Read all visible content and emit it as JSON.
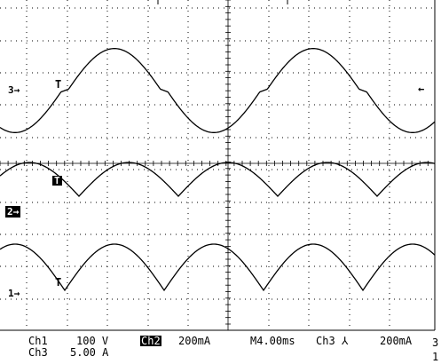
{
  "screen": {
    "trigger_glyph": "T",
    "ch_markers": [
      {
        "label": "3→",
        "inverted": false
      },
      {
        "label": "2→",
        "inverted": true
      },
      {
        "label": "1→",
        "inverted": false
      }
    ],
    "right_trigger_arrow": "←"
  },
  "readout": {
    "ch1_label": "Ch1",
    "ch1_scale": "100 V",
    "ch2_label": "Ch2",
    "ch2_scale": "200mA",
    "timebase": "M4.00ms",
    "trigger_source": "Ch3",
    "trigger_slope": "⅄",
    "trigger_level": "200mA",
    "ch3_label": "Ch3",
    "ch3_scale": "5.00 A",
    "edge_fragment_1": "3",
    "edge_fragment_2": "1"
  },
  "colors": {
    "trace": "#000000",
    "grid": "#000000",
    "background": "#ffffff"
  }
}
